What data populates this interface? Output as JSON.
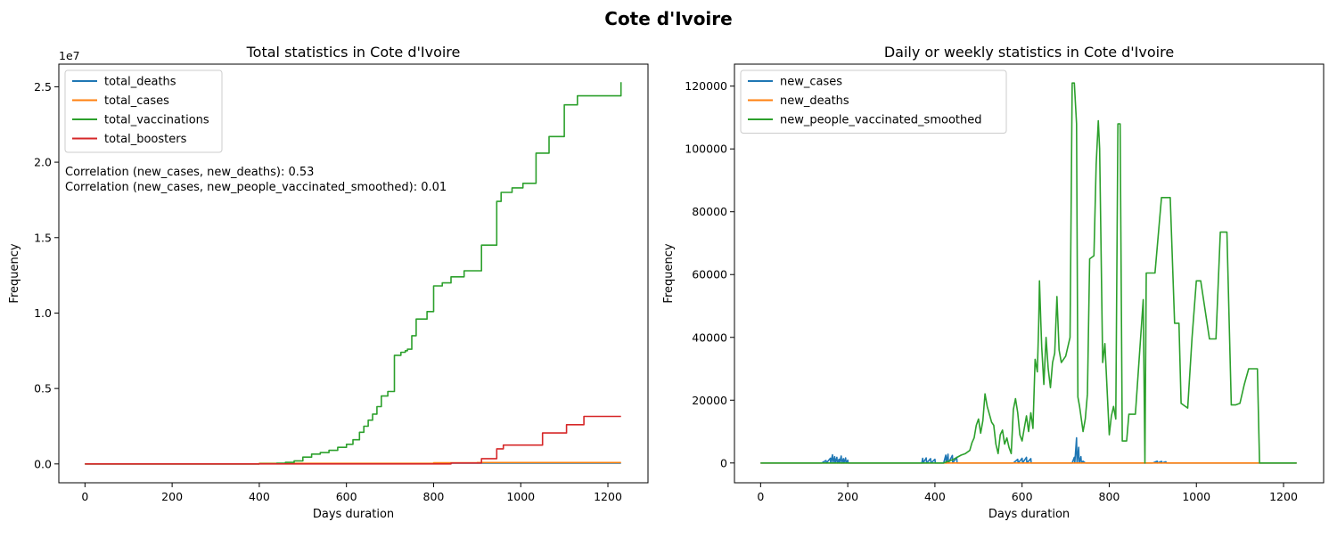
{
  "suptitle": "Cote d'Ivoire",
  "chart_data": [
    {
      "type": "line",
      "title": "Total statistics in Cote d'Ivoire",
      "xlabel": "Days duration",
      "ylabel": "Frequency",
      "y_scale_label": "1e7",
      "xlim": [
        -60,
        1292
      ],
      "ylim": [
        -1250000,
        26500000
      ],
      "xticks": [
        0,
        200,
        400,
        600,
        800,
        1000,
        1200
      ],
      "xtick_labels": [
        "0",
        "200",
        "400",
        "600",
        "800",
        "1000",
        "1200"
      ],
      "yticks": [
        0,
        5000000,
        10000000,
        15000000,
        20000000,
        25000000
      ],
      "ytick_labels": [
        "0.0",
        "0.5",
        "1.0",
        "1.5",
        "2.0",
        "2.5"
      ],
      "legend_position": "upper-left",
      "annotations": [
        "Correlation (new_cases, new_deaths): 0.53",
        "Correlation (new_cases, new_people_vaccinated_smoothed): 0.01"
      ],
      "series": [
        {
          "name": "total_deaths",
          "color": "#1f77b4",
          "step": true,
          "x": [
            0,
            400,
            800,
            1230
          ],
          "y": [
            0,
            20000,
            50000,
            50000
          ]
        },
        {
          "name": "total_cases",
          "color": "#ff7f0e",
          "step": true,
          "x": [
            0,
            400,
            800,
            900,
            1230
          ],
          "y": [
            0,
            40000,
            80000,
            90000,
            90000
          ]
        },
        {
          "name": "total_vaccinations",
          "color": "#2ca02c",
          "step": true,
          "x": [
            0,
            400,
            440,
            460,
            480,
            500,
            520,
            540,
            560,
            580,
            600,
            615,
            630,
            640,
            650,
            660,
            670,
            680,
            695,
            710,
            725,
            735,
            740,
            750,
            760,
            785,
            800,
            820,
            840,
            870,
            910,
            945,
            955,
            980,
            1005,
            1035,
            1065,
            1100,
            1130,
            1230
          ],
          "y": [
            0,
            20000,
            50000,
            100000,
            200000,
            450000,
            650000,
            750000,
            900000,
            1100000,
            1300000,
            1600000,
            2100000,
            2500000,
            2900000,
            3300000,
            3800000,
            4500000,
            4800000,
            7200000,
            7400000,
            7500000,
            7600000,
            8500000,
            9600000,
            10100000,
            11800000,
            12000000,
            12400000,
            12800000,
            14500000,
            17400000,
            18000000,
            18300000,
            18600000,
            20600000,
            21700000,
            23800000,
            24400000,
            25300000
          ]
        },
        {
          "name": "total_boosters",
          "color": "#d62728",
          "step": true,
          "x": [
            0,
            840,
            910,
            945,
            960,
            1050,
            1105,
            1145,
            1230
          ],
          "y": [
            0,
            60000,
            350000,
            1000000,
            1250000,
            2050000,
            2600000,
            3150000,
            3150000
          ]
        }
      ]
    },
    {
      "type": "line",
      "title": "Daily or weekly statistics in Cote d'Ivoire",
      "xlabel": "Days duration",
      "ylabel": "Frequency",
      "xlim": [
        -60,
        1292
      ],
      "ylim": [
        -6300,
        127000
      ],
      "xticks": [
        0,
        200,
        400,
        600,
        800,
        1000,
        1200
      ],
      "xtick_labels": [
        "0",
        "200",
        "400",
        "600",
        "800",
        "1000",
        "1200"
      ],
      "yticks": [
        0,
        20000,
        40000,
        60000,
        80000,
        100000,
        120000
      ],
      "ytick_labels": [
        "0",
        "20000",
        "40000",
        "60000",
        "80000",
        "100000",
        "120000"
      ],
      "legend_position": "upper-left",
      "series": [
        {
          "name": "new_cases",
          "color": "#1f77b4",
          "step": false,
          "x": [
            0,
            140,
            150,
            151,
            160,
            161,
            165,
            166,
            170,
            171,
            175,
            176,
            180,
            181,
            185,
            186,
            190,
            191,
            195,
            196,
            200,
            201,
            210,
            370,
            372,
            373,
            380,
            381,
            390,
            391,
            400,
            401,
            410,
            420,
            425,
            426,
            430,
            431,
            440,
            441,
            450,
            451,
            460,
            580,
            590,
            591,
            600,
            601,
            610,
            611,
            620,
            621,
            630,
            640,
            715,
            720,
            721,
            725,
            726,
            730,
            731,
            735,
            736,
            740,
            745,
            900,
            910,
            911,
            920,
            921,
            930,
            931,
            940,
            950,
            1230
          ],
          "y": [
            0,
            0,
            800,
            0,
            1500,
            0,
            2600,
            0,
            2000,
            0,
            1800,
            0,
            1200,
            0,
            2200,
            0,
            1400,
            0,
            1600,
            0,
            900,
            0,
            0,
            0,
            1500,
            0,
            1600,
            0,
            1400,
            0,
            1200,
            0,
            0,
            0,
            2500,
            0,
            2800,
            0,
            2400,
            0,
            1800,
            0,
            0,
            0,
            1200,
            0,
            1500,
            0,
            1800,
            0,
            1400,
            0,
            0,
            0,
            0,
            1800,
            0,
            8000,
            0,
            5000,
            0,
            2000,
            0,
            600,
            0,
            0,
            600,
            0,
            500,
            0,
            400,
            0,
            0,
            0,
            0
          ]
        },
        {
          "name": "new_deaths",
          "color": "#ff7f0e",
          "step": false,
          "x": [
            0,
            1230
          ],
          "y": [
            0,
            0
          ]
        },
        {
          "name": "new_people_vaccinated_smoothed",
          "color": "#2ca02c",
          "step": false,
          "x": [
            0,
            420,
            440,
            460,
            470,
            480,
            485,
            490,
            495,
            500,
            505,
            510,
            515,
            520,
            530,
            535,
            540,
            545,
            550,
            555,
            560,
            565,
            570,
            575,
            580,
            585,
            590,
            595,
            600,
            605,
            610,
            615,
            620,
            625,
            630,
            635,
            638,
            640,
            643,
            645,
            650,
            655,
            660,
            665,
            670,
            675,
            680,
            685,
            690,
            700,
            710,
            715,
            720,
            725,
            728,
            732,
            740,
            745,
            750,
            755,
            765,
            770,
            775,
            778,
            785,
            790,
            800,
            805,
            810,
            815,
            820,
            825,
            830,
            840,
            845,
            860,
            878,
            882,
            885,
            890,
            905,
            920,
            935,
            940,
            950,
            960,
            965,
            970,
            980,
            990,
            1000,
            1005,
            1010,
            1030,
            1040,
            1045,
            1055,
            1060,
            1070,
            1080,
            1090,
            1100,
            1110,
            1120,
            1130,
            1140,
            1145,
            1150,
            1230
          ],
          "y": [
            0,
            0,
            1000,
            2500,
            3000,
            4000,
            6500,
            8000,
            12000,
            14000,
            9500,
            13500,
            22000,
            18000,
            13000,
            12000,
            6000,
            3000,
            9000,
            10500,
            6000,
            8000,
            5000,
            3000,
            17000,
            20500,
            16000,
            9000,
            7000,
            11000,
            15000,
            10000,
            16000,
            11000,
            33000,
            29000,
            44000,
            58000,
            45000,
            37000,
            25000,
            40000,
            30000,
            24000,
            32000,
            35000,
            53000,
            36000,
            32000,
            34000,
            40000,
            121000,
            121000,
            108000,
            21000,
            18000,
            10000,
            14000,
            22000,
            65000,
            66000,
            95000,
            109000,
            100000,
            32000,
            38000,
            9000,
            15000,
            18000,
            14000,
            108000,
            108000,
            7000,
            7000,
            15500,
            15500,
            52000,
            0,
            60500,
            60500,
            60500,
            84500,
            84500,
            84500,
            44500,
            44500,
            19000,
            18500,
            17500,
            40000,
            58000,
            58000,
            58000,
            39500,
            39500,
            39500,
            73500,
            73500,
            73500,
            18500,
            18500,
            19000,
            25000,
            30000,
            30000,
            30000,
            0,
            0,
            0
          ]
        }
      ]
    }
  ]
}
